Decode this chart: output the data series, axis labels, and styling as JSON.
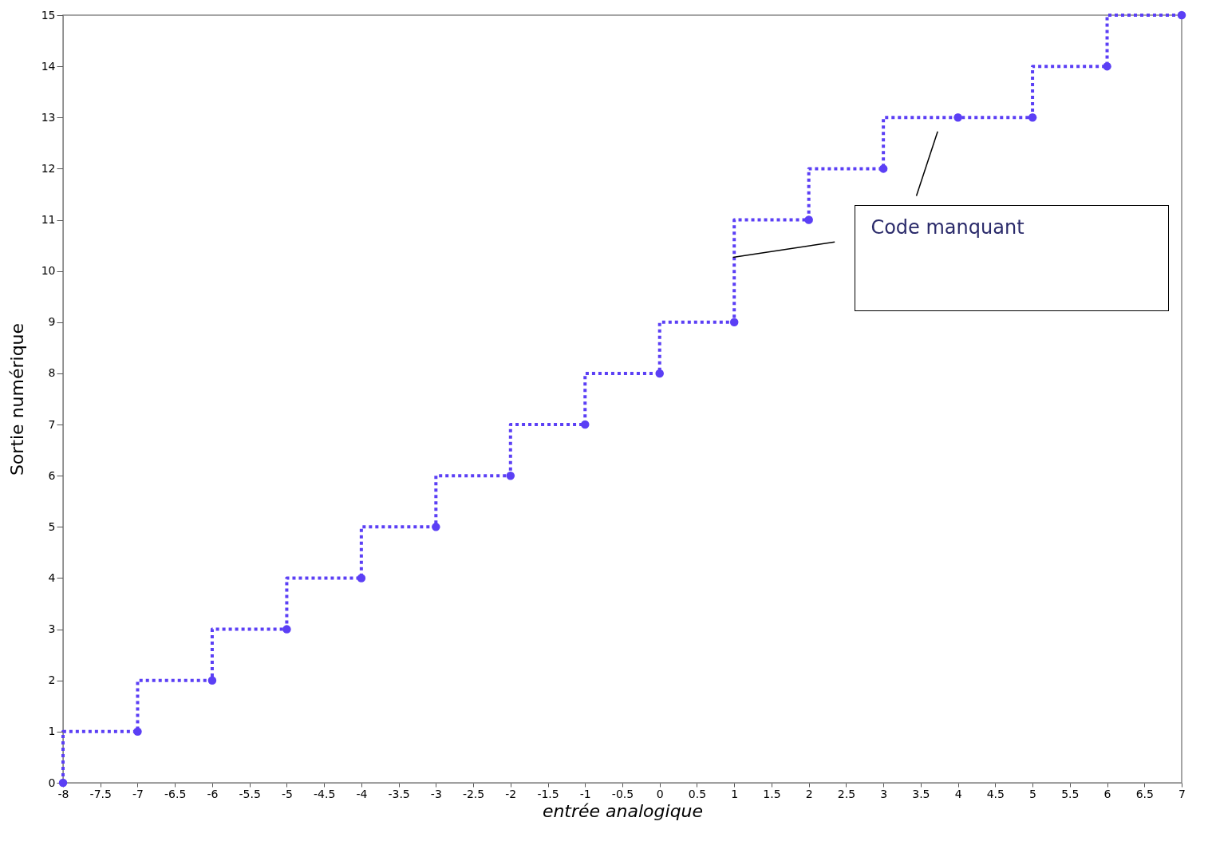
{
  "chart_data": {
    "type": "step",
    "xlabel": "entrée analogique",
    "ylabel": "Sortie numérique",
    "x": [
      -8,
      -7,
      -6,
      -5,
      -4,
      -3,
      -2,
      -1,
      0,
      1,
      2,
      3,
      4,
      5,
      6,
      7
    ],
    "series": [
      {
        "color": "#5b3ff5",
        "values": [
          0,
          1,
          2,
          3,
          4,
          5,
          6,
          7,
          8,
          9,
          11,
          12,
          13,
          13,
          14,
          15
        ]
      }
    ],
    "xlim": [
      -8,
      7
    ],
    "xticks": [
      -8,
      -7.5,
      -7,
      -6.5,
      -6,
      -5.5,
      -5,
      -4.5,
      -4,
      -3.5,
      -3,
      -2.5,
      -2,
      -1.5,
      -1,
      -0.5,
      0,
      0.5,
      1,
      1.5,
      2,
      2.5,
      3,
      3.5,
      4,
      4.5,
      5,
      5.5,
      6,
      6.5,
      7
    ],
    "ylim": [
      0,
      15
    ],
    "yticks": [
      0,
      1,
      2,
      3,
      4,
      5,
      6,
      7,
      8,
      9,
      10,
      11,
      12,
      13,
      14,
      15
    ],
    "grid": false,
    "marker": "circle",
    "line_style": "dotted",
    "annotations": [
      "Code manquant"
    ]
  }
}
